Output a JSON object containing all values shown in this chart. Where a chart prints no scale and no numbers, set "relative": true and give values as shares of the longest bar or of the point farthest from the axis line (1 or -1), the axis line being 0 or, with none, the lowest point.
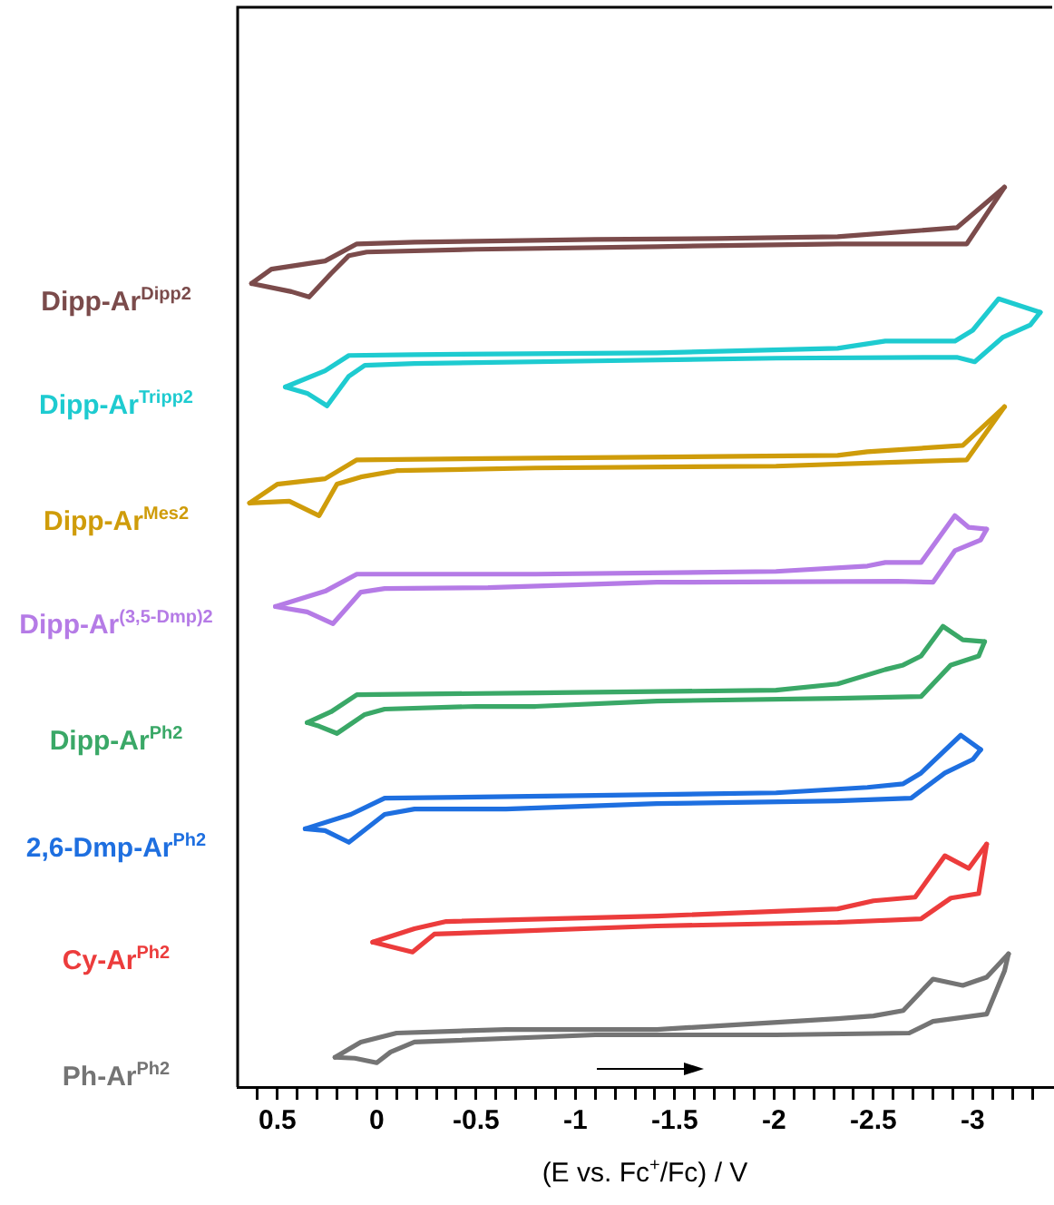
{
  "chart_data": {
    "type": "line",
    "relative": true,
    "xlabel": "(E vs. Fc$^{+}$/Fc) / V",
    "xlim": [
      0.7,
      -3.4
    ],
    "xticks": [
      {
        "value": 0.6,
        "label": null
      },
      0.5,
      {
        "value": 0.4,
        "label": null
      },
      {
        "value": 0.3,
        "label": null
      },
      {
        "value": 0.2,
        "label": null
      },
      {
        "value": 0.1,
        "label": null
      },
      0,
      {
        "value": -0.1,
        "label": null
      },
      {
        "value": -0.2,
        "label": null
      },
      {
        "value": -0.3,
        "label": null
      },
      {
        "value": -0.4,
        "label": null
      },
      -0.5,
      {
        "value": -0.6,
        "label": null
      },
      {
        "value": -0.7,
        "label": null
      },
      {
        "value": -0.8,
        "label": null
      },
      {
        "value": -0.9,
        "label": null
      },
      -1,
      {
        "value": -1.1,
        "label": null
      },
      {
        "value": -1.2,
        "label": null
      },
      {
        "value": -1.3,
        "label": null
      },
      {
        "value": -1.4,
        "label": null
      },
      -1.5,
      {
        "value": -1.6,
        "label": null
      },
      {
        "value": -1.7,
        "label": null
      },
      {
        "value": -1.8,
        "label": null
      },
      {
        "value": -1.9,
        "label": null
      },
      -2,
      {
        "value": -2.1,
        "label": null
      },
      {
        "value": -2.2,
        "label": null
      },
      {
        "value": -2.3,
        "label": null
      },
      {
        "value": -2.4,
        "label": null
      },
      -2.5,
      {
        "value": -2.6,
        "label": null
      },
      {
        "value": -2.7,
        "label": null
      },
      {
        "value": -2.8,
        "label": null
      },
      {
        "value": -2.9,
        "label": null
      },
      -3,
      {
        "value": -3.1,
        "label": null
      },
      {
        "value": -3.2,
        "label": null
      },
      {
        "value": -3.3,
        "label": null
      }
    ],
    "legend": false,
    "marker": "none",
    "series": [
      {
        "name": "Dipp-Ar$^{Dipp2}$",
        "color": "#7b4b4b",
        "x": [
          0.63,
          0.53,
          0.26,
          0.1,
          -0.19,
          -1.1,
          -1.71,
          -2.32,
          -2.92,
          -3.16
        ],
        "values": [
          0.893,
          0.909,
          0.918,
          0.937,
          0.939,
          0.942,
          0.943,
          0.945,
          0.955,
          1.0
        ]
      },
      {
        "color": "#7b4b4b",
        "x": [
          -3.16,
          -2.97,
          -2.32,
          -1.41,
          -0.5,
          0.05,
          0.14,
          0.23,
          0.34,
          0.43,
          0.63
        ],
        "values": [
          1.0,
          0.937,
          0.937,
          0.934,
          0.931,
          0.928,
          0.924,
          0.904,
          0.878,
          0.884,
          0.893
        ]
      },
      {
        "name": "Dipp-Ar$^{Tripp2}$",
        "color": "#1ecbd0",
        "x": [
          0.46,
          0.26,
          0.14,
          -0.19,
          -1.41,
          -2.32,
          -2.56,
          -2.91,
          -3.0,
          -3.13,
          -3.34
        ],
        "values": [
          0.778,
          0.796,
          0.813,
          0.814,
          0.816,
          0.821,
          0.829,
          0.829,
          0.841,
          0.876,
          0.861
        ]
      },
      {
        "color": "#1ecbd0",
        "x": [
          -3.34,
          -3.29,
          -3.15,
          -3.01,
          -2.92,
          -2.01,
          -1.1,
          -0.19,
          0.06,
          0.14,
          0.25,
          0.35,
          0.46
        ],
        "values": [
          0.861,
          0.847,
          0.833,
          0.806,
          0.811,
          0.81,
          0.807,
          0.804,
          0.802,
          0.79,
          0.757,
          0.771,
          0.778
        ]
      },
      {
        "name": "Dipp-Ar$^{Mes2}$",
        "color": "#cf9c0a",
        "x": [
          0.64,
          0.5,
          0.26,
          0.1,
          -0.8,
          -2.32,
          -2.47,
          -2.95,
          -3.16
        ],
        "values": [
          0.649,
          0.67,
          0.676,
          0.697,
          0.699,
          0.702,
          0.706,
          0.713,
          0.756
        ]
      },
      {
        "color": "#cf9c0a",
        "x": [
          -3.16,
          -2.97,
          -2.01,
          -0.8,
          -0.1,
          0.08,
          0.2,
          0.29,
          0.44,
          0.64
        ],
        "values": [
          0.756,
          0.697,
          0.69,
          0.688,
          0.685,
          0.678,
          0.67,
          0.635,
          0.651,
          0.649
        ]
      },
      {
        "name": "Dipp-Ar$^{(3,5-Dmp)2}$",
        "color": "#b57be6",
        "x": [
          0.51,
          0.26,
          0.1,
          -0.8,
          -2.01,
          -2.47,
          -2.56,
          -2.74,
          -2.91,
          -2.98,
          -3.07
        ],
        "values": [
          0.534,
          0.551,
          0.57,
          0.57,
          0.573,
          0.579,
          0.583,
          0.583,
          0.635,
          0.622,
          0.62
        ]
      },
      {
        "color": "#b57be6",
        "x": [
          -3.07,
          -3.04,
          -2.91,
          -2.8,
          -2.62,
          -1.41,
          -0.56,
          -0.04,
          0.08,
          0.22,
          0.35,
          0.51
        ],
        "values": [
          0.62,
          0.608,
          0.596,
          0.561,
          0.562,
          0.561,
          0.555,
          0.554,
          0.55,
          0.515,
          0.528,
          0.534
        ]
      },
      {
        "name": "Dipp-Ar$^{Ph2}$",
        "color": "#3aa867",
        "x": [
          0.35,
          0.23,
          0.1,
          -0.8,
          -2.01,
          -2.32,
          -2.56,
          -2.65,
          -2.74,
          -2.85,
          -2.95,
          -3.06
        ],
        "values": [
          0.405,
          0.417,
          0.436,
          0.438,
          0.441,
          0.448,
          0.464,
          0.469,
          0.479,
          0.512,
          0.497,
          0.495
        ]
      },
      {
        "color": "#3aa867",
        "x": [
          -3.06,
          -3.03,
          -2.89,
          -2.74,
          -2.32,
          -1.41,
          -0.8,
          -0.5,
          -0.04,
          0.06,
          0.2,
          0.29,
          0.35
        ],
        "values": [
          0.495,
          0.479,
          0.469,
          0.434,
          0.432,
          0.429,
          0.423,
          0.423,
          0.42,
          0.414,
          0.393,
          0.401,
          0.405
        ]
      },
      {
        "name": "2,6-Dmp-Ar$^{Ph2}$",
        "color": "#1e6fe0",
        "x": [
          0.36,
          0.13,
          -0.04,
          -1.1,
          -2.01,
          -2.47,
          -2.65,
          -2.74,
          -2.94,
          -3.04
        ],
        "values": [
          0.287,
          0.303,
          0.321,
          0.324,
          0.327,
          0.333,
          0.337,
          0.349,
          0.391,
          0.375
        ]
      },
      {
        "color": "#1e6fe0",
        "x": [
          -3.04,
          -3.0,
          -2.86,
          -2.69,
          -2.32,
          -1.41,
          -0.65,
          -0.19,
          -0.04,
          0.14,
          0.26,
          0.36
        ],
        "values": [
          0.375,
          0.364,
          0.349,
          0.321,
          0.318,
          0.315,
          0.309,
          0.309,
          0.303,
          0.272,
          0.285,
          0.287
        ]
      },
      {
        "name": "Cy-Ar$^{Ph2}$",
        "color": "#ec3c3c",
        "x": [
          0.02,
          -0.19,
          -0.35,
          -1.41,
          -2.32,
          -2.5,
          -2.71,
          -2.86,
          -2.98,
          -3.07
        ],
        "values": [
          0.161,
          0.176,
          0.184,
          0.19,
          0.198,
          0.207,
          0.211,
          0.257,
          0.243,
          0.27
        ]
      },
      {
        "color": "#ec3c3c",
        "x": [
          -3.07,
          -3.03,
          -2.89,
          -2.74,
          -2.32,
          -1.41,
          -0.68,
          -0.29,
          -0.18,
          -0.07,
          0.02
        ],
        "values": [
          0.27,
          0.215,
          0.21,
          0.187,
          0.183,
          0.179,
          0.173,
          0.17,
          0.15,
          0.156,
          0.161
        ]
      },
      {
        "name": "Ph-Ar$^{Ph2}$",
        "color": "#747474",
        "x": [
          0.21,
          0.08,
          -0.1,
          -0.65,
          -1.41,
          -2.32,
          -2.5,
          -2.65,
          -2.8,
          -2.95,
          -3.07,
          -3.18
        ],
        "values": [
          0.033,
          0.05,
          0.06,
          0.064,
          0.064,
          0.076,
          0.079,
          0.085,
          0.12,
          0.113,
          0.122,
          0.148
        ]
      },
      {
        "color": "#747474",
        "x": [
          -3.18,
          -3.16,
          -3.07,
          -2.8,
          -2.68,
          -2.01,
          -1.1,
          -0.19,
          -0.07,
          0.0,
          0.11,
          0.21
        ],
        "values": [
          0.148,
          0.129,
          0.081,
          0.073,
          0.06,
          0.058,
          0.058,
          0.05,
          0.039,
          0.027,
          0.032,
          0.033
        ]
      }
    ]
  }
}
